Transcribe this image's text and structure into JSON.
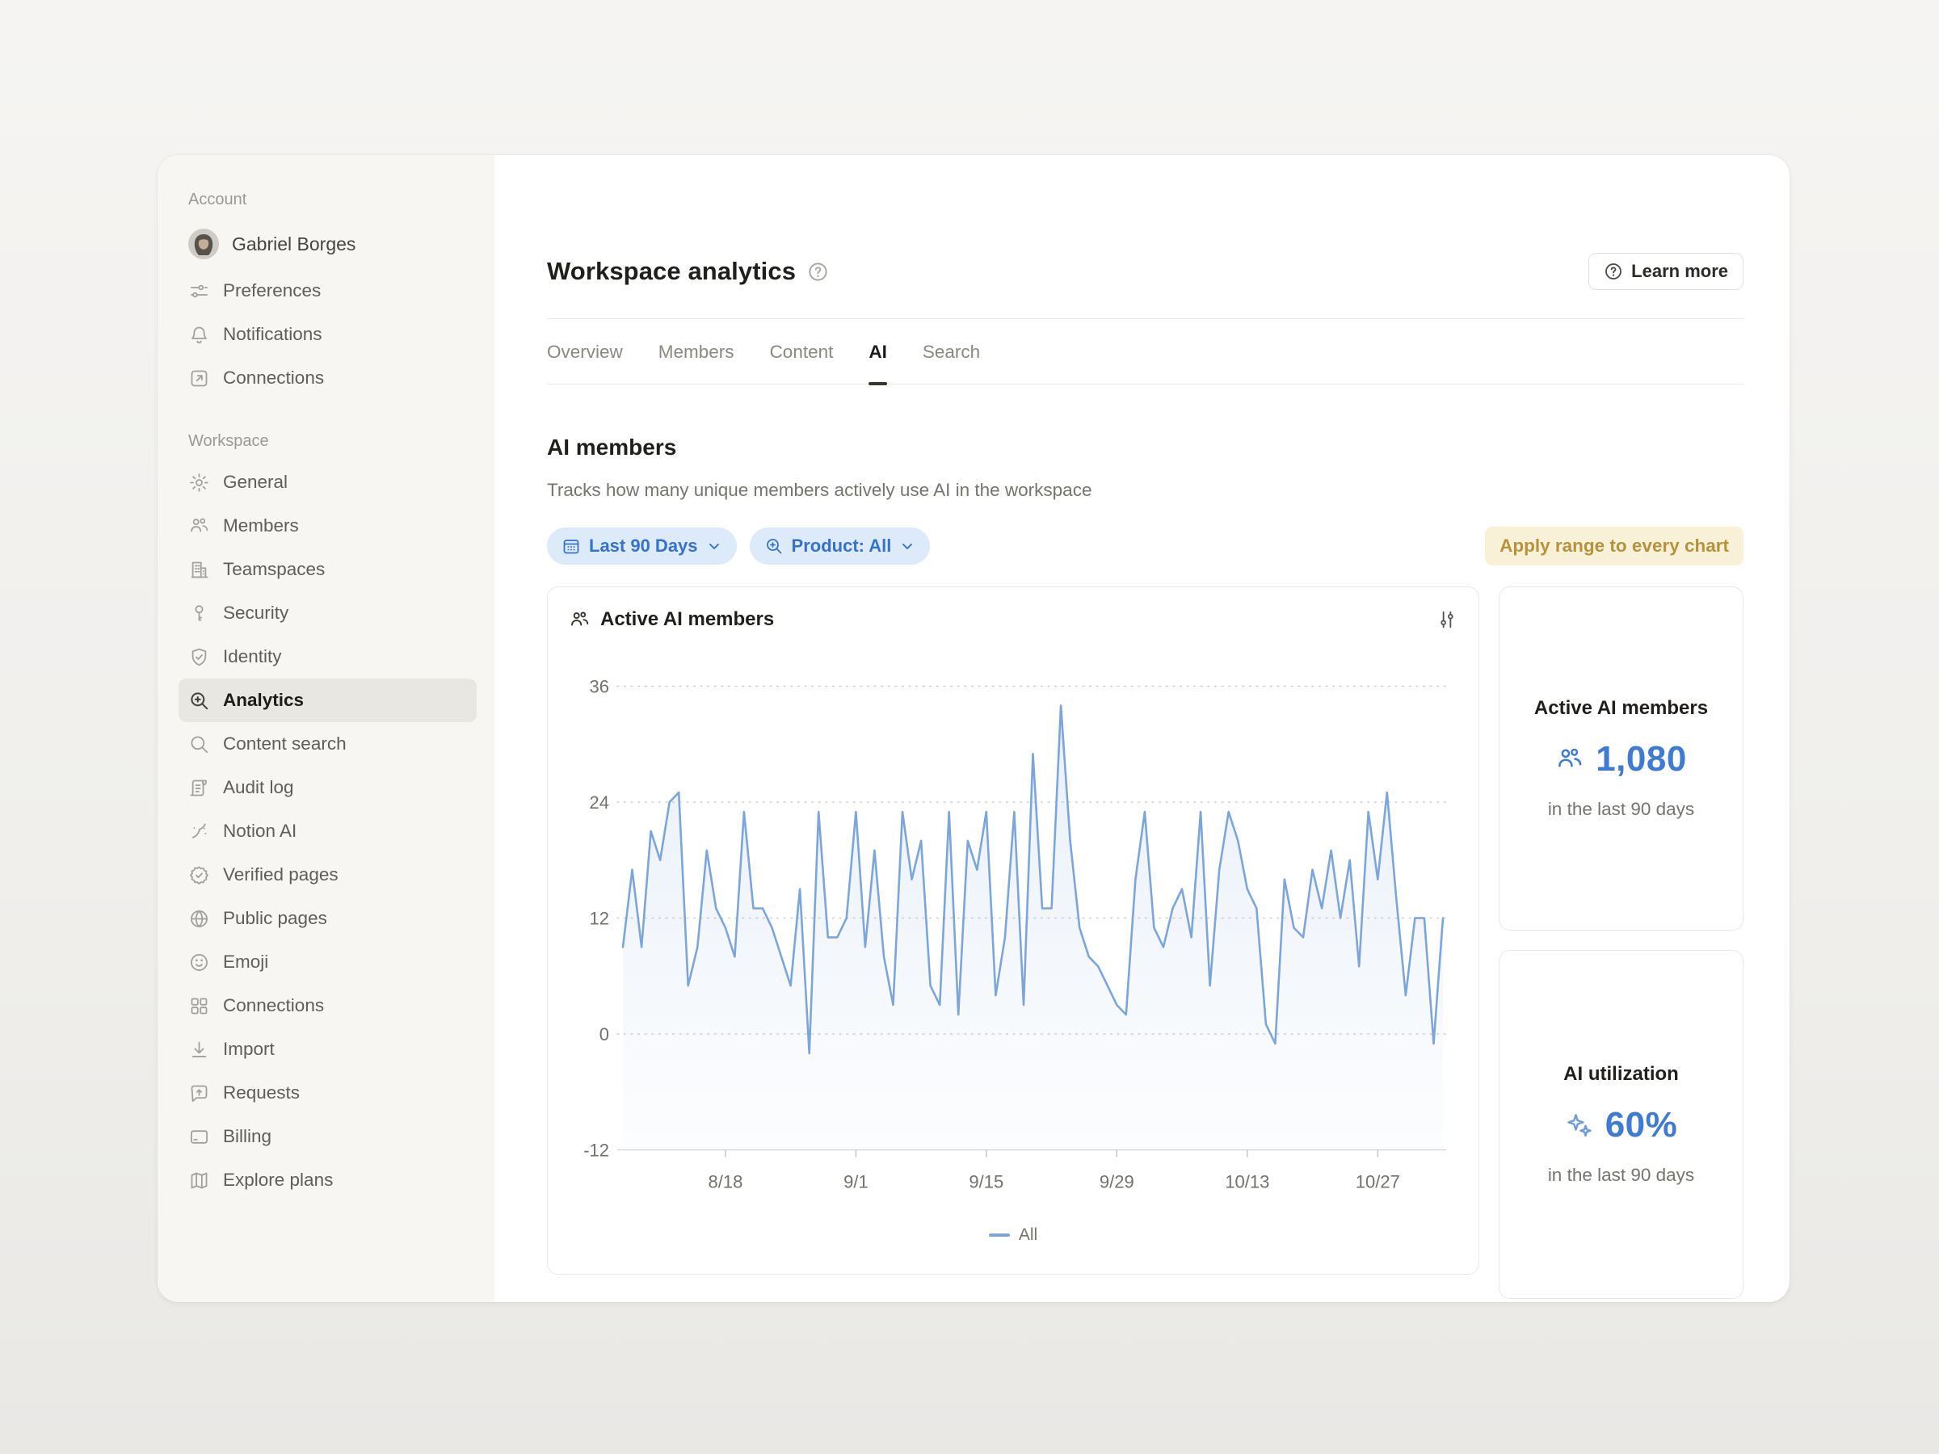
{
  "colors": {
    "accent_blue": "#3672c8",
    "value_blue": "#3f7bd0",
    "line_blue": "#7ca6da",
    "pill_bg": "#ddeafa",
    "golden_text": "#b5923c",
    "golden_bg": "#f8f1d8",
    "selected_row_bg": "#e9e7e2"
  },
  "sidebar": {
    "sections": [
      {
        "label": "Account",
        "items": [
          {
            "label": "Gabriel Borges",
            "icon": "avatar"
          },
          {
            "label": "Preferences",
            "icon": "sliders-horizontal"
          },
          {
            "label": "Notifications",
            "icon": "bell"
          },
          {
            "label": "Connections",
            "icon": "arrow-up-right-box"
          }
        ]
      },
      {
        "label": "Workspace",
        "items": [
          {
            "label": "General",
            "icon": "gear"
          },
          {
            "label": "Members",
            "icon": "people"
          },
          {
            "label": "Teamspaces",
            "icon": "building"
          },
          {
            "label": "Security",
            "icon": "key"
          },
          {
            "label": "Identity",
            "icon": "shield-check"
          },
          {
            "label": "Analytics",
            "icon": "magnifier-plus",
            "selected": true
          },
          {
            "label": "Content search",
            "icon": "magnifier"
          },
          {
            "label": "Audit log",
            "icon": "scroll"
          },
          {
            "label": "Notion AI",
            "icon": "wand"
          },
          {
            "label": "Verified pages",
            "icon": "badge-check"
          },
          {
            "label": "Public pages",
            "icon": "globe"
          },
          {
            "label": "Emoji",
            "icon": "smiley"
          },
          {
            "label": "Connections",
            "icon": "grid"
          },
          {
            "label": "Import",
            "icon": "download"
          },
          {
            "label": "Requests",
            "icon": "message-up"
          },
          {
            "label": "Billing",
            "icon": "credit-card"
          },
          {
            "label": "Explore plans",
            "icon": "map"
          }
        ]
      }
    ]
  },
  "header": {
    "title": "Workspace analytics",
    "learn_more_label": "Learn more"
  },
  "tabs": [
    {
      "label": "Overview"
    },
    {
      "label": "Members"
    },
    {
      "label": "Content"
    },
    {
      "label": "AI",
      "active": true
    },
    {
      "label": "Search"
    }
  ],
  "section": {
    "title": "AI members",
    "description": "Tracks how many unique members actively use AI in the workspace"
  },
  "filters": {
    "date_range": "Last 90 Days",
    "product": "Product: All",
    "apply_label": "Apply range to every chart"
  },
  "chart_card": {
    "title": "Active AI members"
  },
  "stat_cards": [
    {
      "title": "Active AI members",
      "icon": "people",
      "value": "1,080",
      "caption": "in the last 90 days"
    },
    {
      "title": "AI utilization",
      "icon": "sparkles",
      "value": "60%",
      "caption": "in the last 90 days"
    }
  ],
  "chart_data": {
    "type": "line",
    "title": "Active AI members",
    "xlabel": "",
    "ylabel": "",
    "ylim": [
      -12,
      36
    ],
    "yticks": [
      36,
      24,
      12,
      0,
      -12
    ],
    "grid": "dotted horizontal gridlines at 0,12,24,36; solid axis at -12",
    "legend_position": "bottom",
    "legend": [
      "All"
    ],
    "x_tick_labels": [
      "8/18",
      "9/1",
      "9/15",
      "9/29",
      "10/13",
      "10/27"
    ],
    "x_tick_indices": [
      11,
      25,
      39,
      53,
      67,
      81
    ],
    "series": [
      {
        "name": "All",
        "values": [
          9,
          17,
          9,
          21,
          18,
          24,
          25,
          5,
          9,
          19,
          13,
          11,
          8,
          23,
          13,
          13,
          11,
          8,
          5,
          15,
          -2,
          23,
          10,
          10,
          12,
          23,
          9,
          19,
          8,
          3,
          23,
          16,
          20,
          5,
          3,
          23,
          2,
          20,
          17,
          23,
          4,
          10,
          23,
          3,
          29,
          13,
          13,
          34,
          20,
          11,
          8,
          7,
          5,
          3,
          2,
          16,
          23,
          11,
          9,
          13,
          15,
          10,
          23,
          5,
          17,
          23,
          20,
          15,
          13,
          1,
          -1,
          16,
          11,
          10,
          17,
          13,
          19,
          12,
          18,
          7,
          23,
          16,
          25,
          14,
          4,
          12,
          12,
          -1,
          12
        ]
      }
    ]
  }
}
